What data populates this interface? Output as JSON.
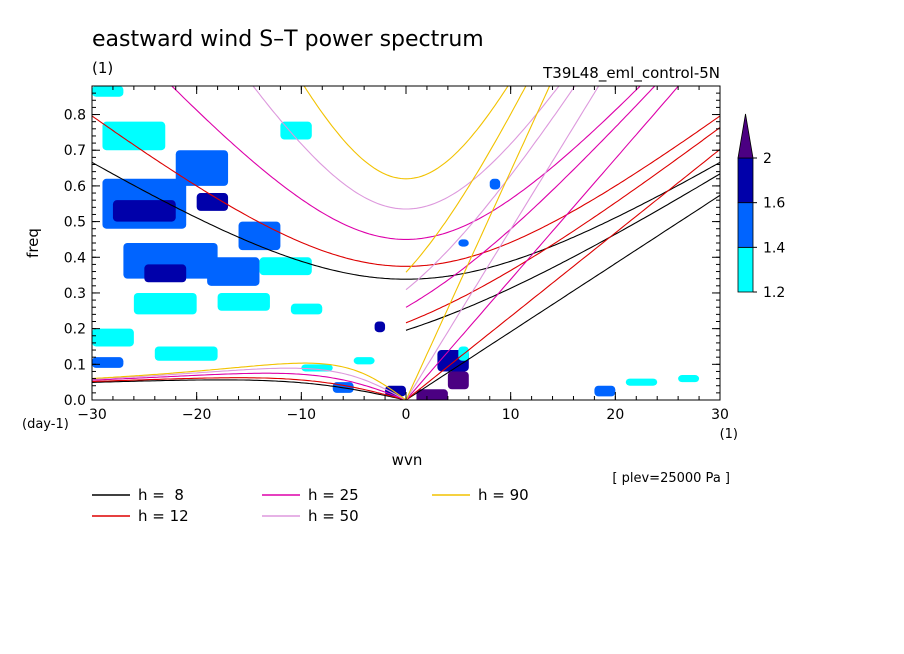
{
  "chart_data": {
    "type": "heatmap",
    "title": "eastward wind S–T power spectrum",
    "subtitle_left": "(1)",
    "subtitle_right": "T39L48_eml_control-5N",
    "xlabel": "wvn",
    "ylabel": "freq",
    "x_unit_label": "(1)",
    "y_unit_label": "(day-1)",
    "level_note": "[ plev=25000 Pa ]",
    "xlim": [
      -30,
      30
    ],
    "ylim": [
      0,
      0.88
    ],
    "x_ticks": [
      "−30",
      "−20",
      "−10",
      "0",
      "10",
      "20",
      "30"
    ],
    "x_tick_values": [
      -30,
      -20,
      -10,
      0,
      10,
      20,
      30
    ],
    "y_ticks": [
      "0.0",
      "0.1",
      "0.2",
      "0.3",
      "0.4",
      "0.5",
      "0.6",
      "0.7",
      "0.8"
    ],
    "y_tick_values": [
      0,
      0.1,
      0.2,
      0.3,
      0.4,
      0.5,
      0.6,
      0.7,
      0.8
    ],
    "colorbar": {
      "levels": [
        "1.2",
        "1.4",
        "1.6",
        "2"
      ],
      "level_values": [
        1.2,
        1.4,
        1.6,
        2.0
      ],
      "colors": [
        "#00ffff",
        "#0064ff",
        "#0000aa",
        "#4b0082"
      ]
    },
    "dispersion_curves": [
      {
        "label": "h =  8",
        "h": 8,
        "color": "#000000"
      },
      {
        "label": "h = 12",
        "h": 12,
        "color": "#dd0000"
      },
      {
        "label": "h = 25",
        "h": 25,
        "color": "#dd00aa"
      },
      {
        "label": "h = 50",
        "h": 50,
        "color": "#dd99dd"
      },
      {
        "label": "h = 90",
        "h": 90,
        "color": "#f2c200"
      }
    ],
    "power_regions": [
      {
        "x": -30,
        "y": 0.88,
        "w": 3,
        "h": 0.03,
        "level": 1
      },
      {
        "x": -29,
        "y": 0.62,
        "w": 8,
        "h": 0.14,
        "level": 2
      },
      {
        "x": -28,
        "y": 0.56,
        "w": 6,
        "h": 0.06,
        "level": 3
      },
      {
        "x": -22,
        "y": 0.7,
        "w": 5,
        "h": 0.1,
        "level": 2
      },
      {
        "x": -20,
        "y": 0.58,
        "w": 3,
        "h": 0.05,
        "level": 3
      },
      {
        "x": -27,
        "y": 0.44,
        "w": 9,
        "h": 0.1,
        "level": 2
      },
      {
        "x": -19,
        "y": 0.4,
        "w": 5,
        "h": 0.08,
        "level": 2
      },
      {
        "x": -14,
        "y": 0.4,
        "w": 5,
        "h": 0.05,
        "level": 1
      },
      {
        "x": -25,
        "y": 0.38,
        "w": 4,
        "h": 0.05,
        "level": 3
      },
      {
        "x": -16,
        "y": 0.5,
        "w": 4,
        "h": 0.08,
        "level": 2
      },
      {
        "x": -29,
        "y": 0.78,
        "w": 6,
        "h": 0.08,
        "level": 1
      },
      {
        "x": -12,
        "y": 0.78,
        "w": 3,
        "h": 0.05,
        "level": 1
      },
      {
        "x": -26,
        "y": 0.3,
        "w": 6,
        "h": 0.06,
        "level": 1
      },
      {
        "x": -18,
        "y": 0.3,
        "w": 5,
        "h": 0.05,
        "level": 1
      },
      {
        "x": -30,
        "y": 0.2,
        "w": 4,
        "h": 0.05,
        "level": 1
      },
      {
        "x": -24,
        "y": 0.15,
        "w": 6,
        "h": 0.04,
        "level": 1
      },
      {
        "x": -3,
        "y": 0.22,
        "w": 1,
        "h": 0.03,
        "level": 3
      },
      {
        "x": 1,
        "y": 0.03,
        "w": 3,
        "h": 0.06,
        "level": 4
      },
      {
        "x": 3,
        "y": 0.14,
        "w": 3,
        "h": 0.06,
        "level": 3
      },
      {
        "x": 5,
        "y": 0.15,
        "w": 1,
        "h": 0.04,
        "level": 1
      },
      {
        "x": 4,
        "y": 0.08,
        "w": 2,
        "h": 0.05,
        "level": 4
      },
      {
        "x": 5,
        "y": 0.45,
        "w": 1,
        "h": 0.02,
        "level": 2
      },
      {
        "x": 8,
        "y": 0.62,
        "w": 1,
        "h": 0.03,
        "level": 2
      },
      {
        "x": -7,
        "y": 0.05,
        "w": 2,
        "h": 0.03,
        "level": 2
      },
      {
        "x": -2,
        "y": 0.04,
        "w": 2,
        "h": 0.03,
        "level": 3
      },
      {
        "x": 18,
        "y": 0.04,
        "w": 2,
        "h": 0.03,
        "level": 2
      },
      {
        "x": 21,
        "y": 0.06,
        "w": 3,
        "h": 0.02,
        "level": 1
      },
      {
        "x": 26,
        "y": 0.07,
        "w": 2,
        "h": 0.02,
        "level": 1
      },
      {
        "x": -30,
        "y": 0.12,
        "w": 3,
        "h": 0.03,
        "level": 2
      },
      {
        "x": -10,
        "y": 0.1,
        "w": 3,
        "h": 0.02,
        "level": 1
      },
      {
        "x": -5,
        "y": 0.12,
        "w": 2,
        "h": 0.02,
        "level": 1
      },
      {
        "x": -11,
        "y": 0.27,
        "w": 3,
        "h": 0.03,
        "level": 1
      }
    ]
  }
}
